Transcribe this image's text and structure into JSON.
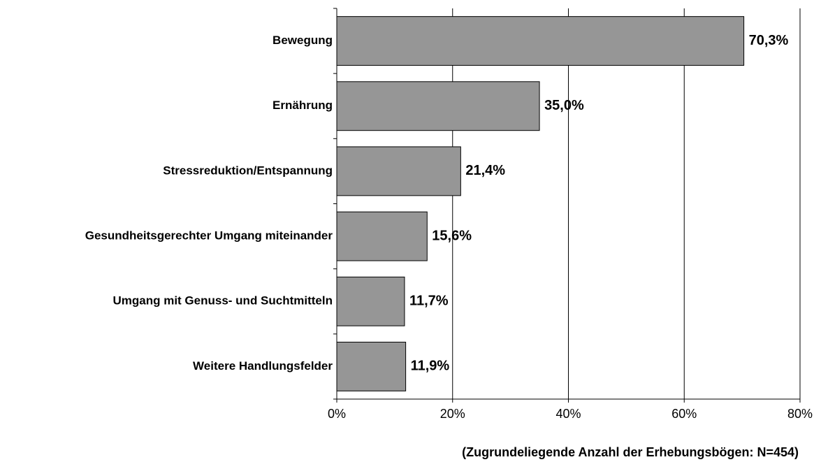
{
  "chart_data": {
    "type": "bar",
    "orientation": "horizontal",
    "categories": [
      "Bewegung",
      "Ernährung",
      "Stressreduktion/Entspannung",
      "Gesundheitsgerechter Umgang miteinander",
      "Umgang mit Genuss- und Suchtmitteln",
      "Weitere Handlungsfelder"
    ],
    "values": [
      70.3,
      35.0,
      21.4,
      15.6,
      11.7,
      11.9
    ],
    "value_labels": [
      "70,3%",
      "35,0%",
      "21,4%",
      "15,6%",
      "11,7%",
      "11,9%"
    ],
    "color": "#969696",
    "xlim": [
      0,
      80
    ],
    "xticks": [
      {
        "value": 0,
        "label": "0%"
      },
      {
        "value": 20,
        "label": "20%"
      },
      {
        "value": 40,
        "label": "40%"
      },
      {
        "value": 60,
        "label": "60%"
      },
      {
        "value": 80,
        "label": "80%"
      }
    ],
    "grid": true,
    "note": "(Zugrundeliegende Anzahl der Erhebungsbögen: N=454)"
  }
}
